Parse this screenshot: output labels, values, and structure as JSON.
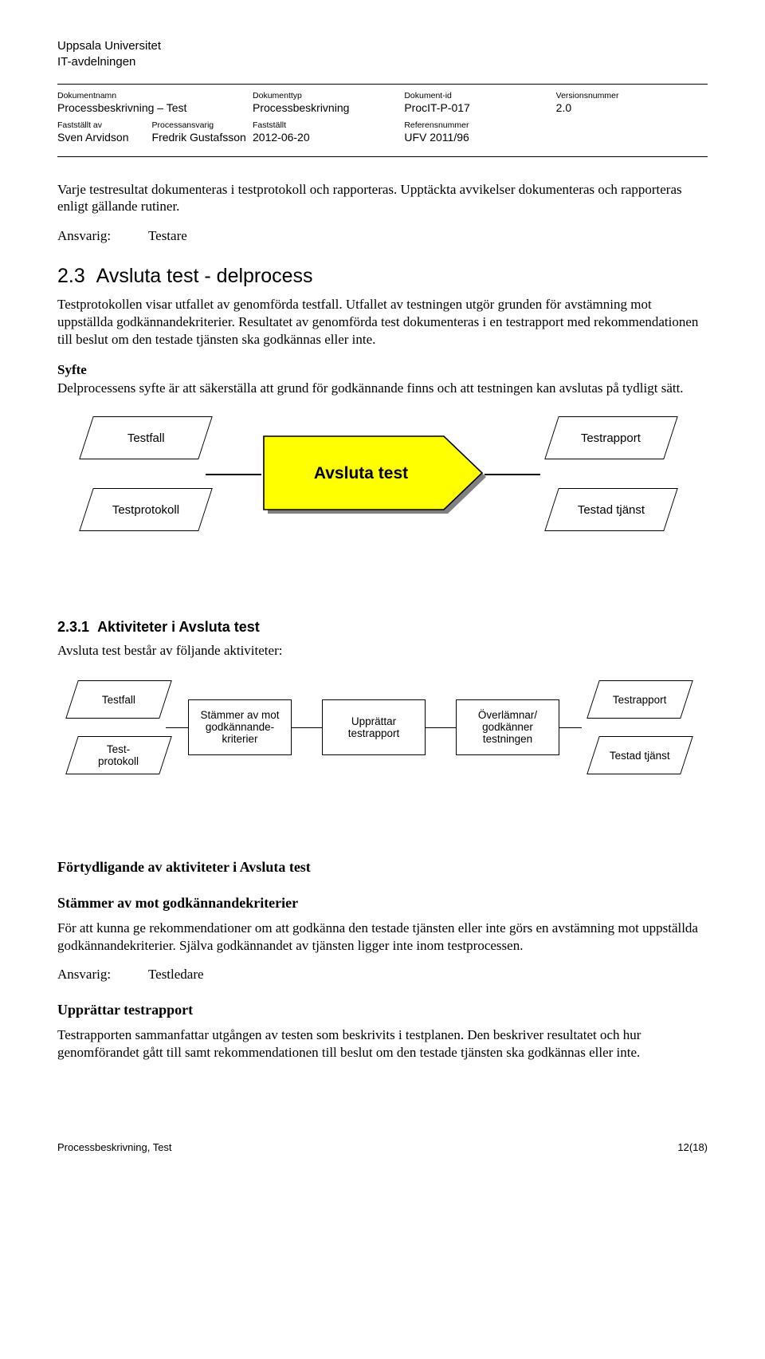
{
  "org": {
    "line1": "Uppsala Universitet",
    "line2": "IT-avdelningen"
  },
  "meta": {
    "labels": {
      "docname": "Dokumentnamn",
      "doctype": "Dokumenttyp",
      "docid": "Dokument-id",
      "version": "Versionsnummer",
      "approved_by": "Fastställt av",
      "process_owner": "Processansvarig",
      "approved": "Fastställt",
      "refno": "Referensnummer"
    },
    "values": {
      "docname": "Processbeskrivning – Test",
      "doctype": "Processbeskrivning",
      "docid": "ProcIT-P-017",
      "version": "2.0",
      "approved_by": "Sven Arvidson",
      "process_owner": "Fredrik Gustafsson",
      "approved": "2012-06-20",
      "refno": "UFV 2011/96"
    }
  },
  "body": {
    "p1": "Varje testresultat dokumenteras i testprotokoll och rapporteras. Upptäckta avvikelser dokumenteras och rapporteras enligt gällande rutiner.",
    "resp_label": "Ansvarig:",
    "resp1": "Testare",
    "h2_num": "2.3",
    "h2_title": "Avsluta test - delprocess",
    "p2": "Testprotokollen visar utfallet av genomförda testfall. Utfallet av testningen utgör grunden för avstämning mot uppställda godkännandekriterier. Resultatet av genomförda test dokumenteras i en testrapport med rekommendationen till beslut om den testade tjänsten ska godkännas eller inte.",
    "syfte_label": "Syfte",
    "p3": "Delprocessens syfte är att säkerställa att grund för godkännande finns och att testningen kan avslutas på tydligt sätt.",
    "h3_num": "2.3.1",
    "h3_title": "Aktiviteter i Avsluta test",
    "p4": "Avsluta test består av följande aktiviteter:",
    "clar_head": "Förtydligande av aktiviteter i Avsluta test",
    "sub1_head": "Stämmer av mot godkännandekriterier",
    "sub1_body": "För att kunna ge rekommendationer om att godkänna den testade tjänsten eller inte görs en avstämning mot uppställda godkännandekriterier. Själva godkännandet av tjänsten ligger inte inom testprocessen.",
    "resp2": "Testledare",
    "sub2_head": "Upprättar testrapport",
    "sub2_body": "Testrapporten sammanfattar utgången av testen som beskrivits i testplanen. Den beskriver resultatet och hur genomförandet gått till samt rekommendationen till beslut om den testade tjänsten ska godkännas eller inte."
  },
  "diagram1": {
    "in1": "Testfall",
    "in2": "Testprotokoll",
    "process": "Avsluta test",
    "out1": "Testrapport",
    "out2": "Testad tjänst",
    "process_fill": "#ffff00",
    "process_stroke": "#000000"
  },
  "diagram2": {
    "in1": "Testfall",
    "in2": "Test-\nprotokoll",
    "step1": "Stämmer av mot godkännande-kriterier",
    "step2": "Upprättar testrapport",
    "step3": "Överlämnar/\ngodkänner testningen",
    "out1": "Testrapport",
    "out2": "Testad tjänst"
  },
  "footer": {
    "left": "Processbeskrivning, Test",
    "right": "12(18)"
  }
}
